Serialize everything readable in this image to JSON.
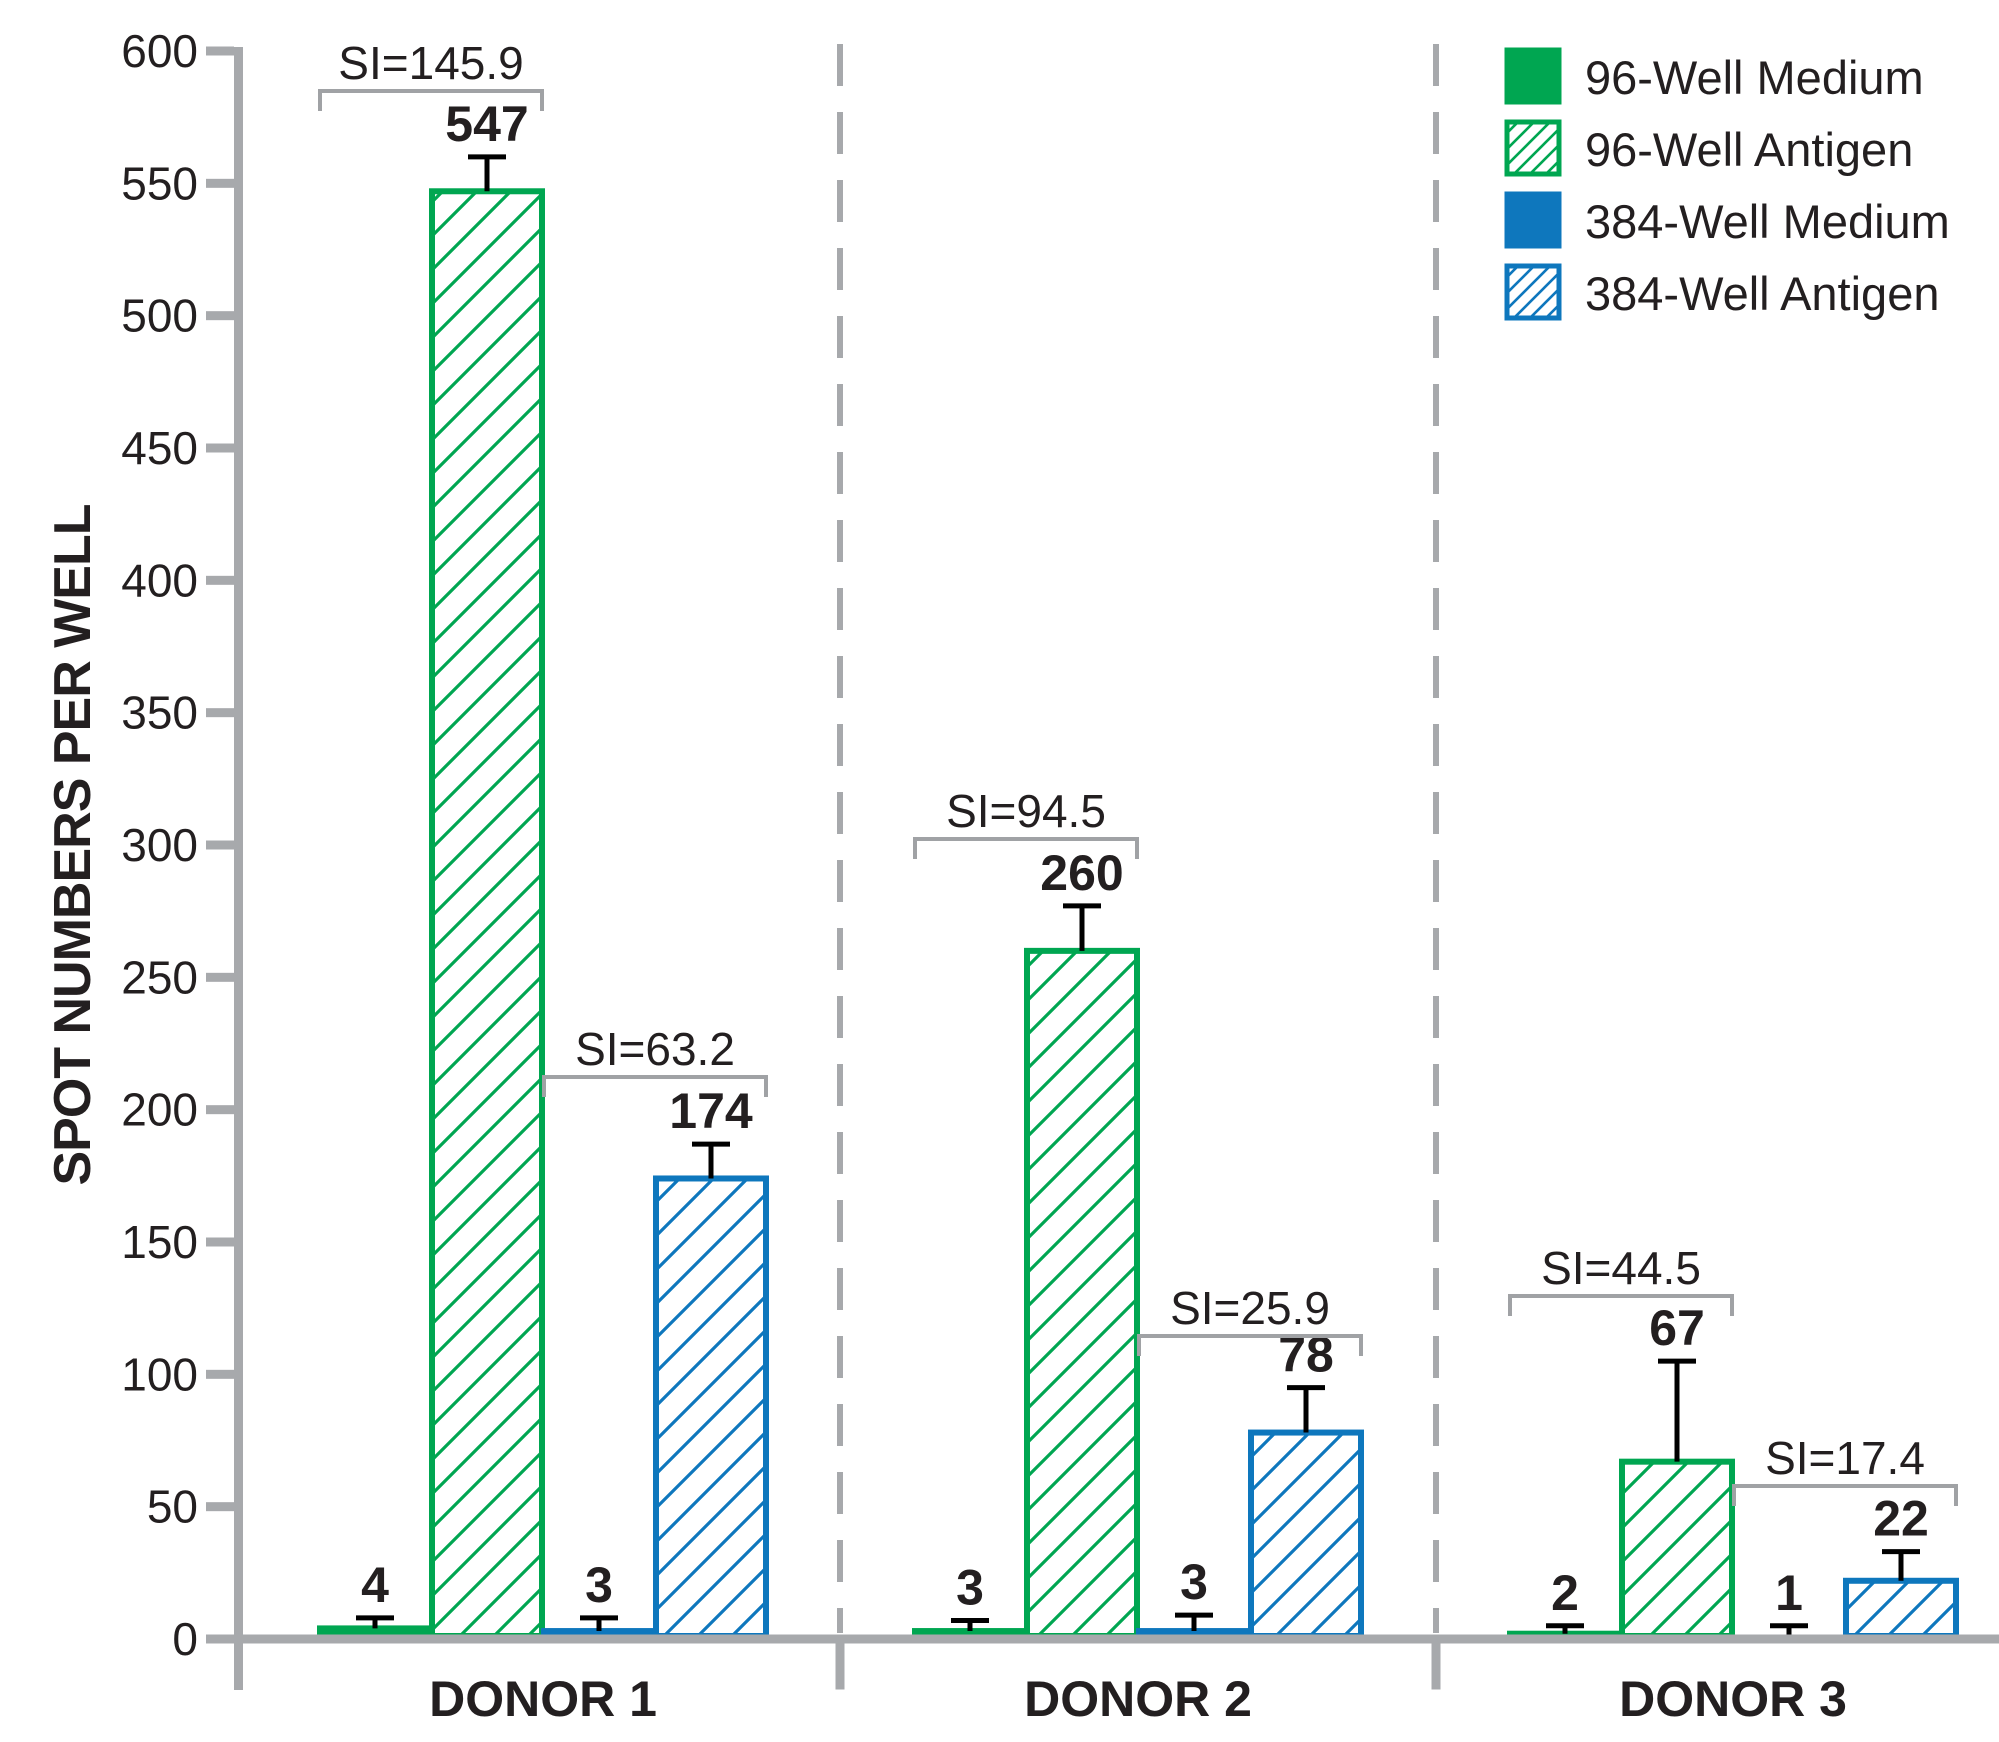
{
  "chart_data": {
    "type": "bar",
    "title": "",
    "ylabel": "SPOT NUMBERS PER WELL",
    "ylim": [
      0,
      600
    ],
    "ytick_step": 50,
    "ytick_labels": [
      "0",
      "50",
      "100",
      "150",
      "200",
      "250",
      "300",
      "350",
      "400",
      "450",
      "500",
      "550",
      "600"
    ],
    "categories": [
      "DONOR 1",
      "DONOR 2",
      "DONOR 3"
    ],
    "series": [
      {
        "name": "96-Well Medium",
        "plate": "96-well",
        "condition": "Medium",
        "style": "solid",
        "color": "#00a651",
        "values": [
          4,
          3,
          2
        ],
        "errors_plus": [
          4,
          4,
          3
        ]
      },
      {
        "name": "96-Well Antigen",
        "plate": "96-well",
        "condition": "Antigen",
        "style": "hatched",
        "color": "#00a651",
        "values": [
          547,
          260,
          67
        ],
        "errors_plus": [
          13,
          17,
          38
        ]
      },
      {
        "name": "384-Well Medium",
        "plate": "384-well",
        "condition": "Medium",
        "style": "solid",
        "color": "#0e77bd",
        "values": [
          3,
          3,
          1
        ],
        "errors_plus": [
          5,
          6,
          4
        ]
      },
      {
        "name": "384-Well Antigen",
        "plate": "384-well",
        "condition": "Antigen",
        "style": "hatched",
        "color": "#0e77bd",
        "values": [
          174,
          78,
          22
        ],
        "errors_plus": [
          13,
          17,
          11
        ]
      }
    ],
    "bar_value_labels_shown": true,
    "si_annotations": [
      {
        "category": "DONOR 1",
        "pair": "96-Well",
        "label": "SI=145.9"
      },
      {
        "category": "DONOR 1",
        "pair": "384-Well",
        "label": "SI=63.2"
      },
      {
        "category": "DONOR 2",
        "pair": "96-Well",
        "label": "SI=94.5"
      },
      {
        "category": "DONOR 2",
        "pair": "384-Well",
        "label": "SI=25.9"
      },
      {
        "category": "DONOR 3",
        "pair": "96-Well",
        "label": "SI=44.5"
      },
      {
        "category": "DONOR 3",
        "pair": "384-Well",
        "label": "SI=17.4"
      }
    ],
    "legend": {
      "position": "top-right",
      "entries": [
        "96-Well Medium",
        "96-Well Antigen",
        "384-Well Medium",
        "384-Well Antigen"
      ]
    },
    "grid": false,
    "group_dividers": "dashed",
    "colors": {
      "green": "#00a651",
      "blue": "#0e77bd",
      "axis_gray": "#a7a9ac",
      "bracket_gray": "#a0a2a5",
      "text_dark": "#231f20",
      "error_bar": "#000000"
    }
  }
}
